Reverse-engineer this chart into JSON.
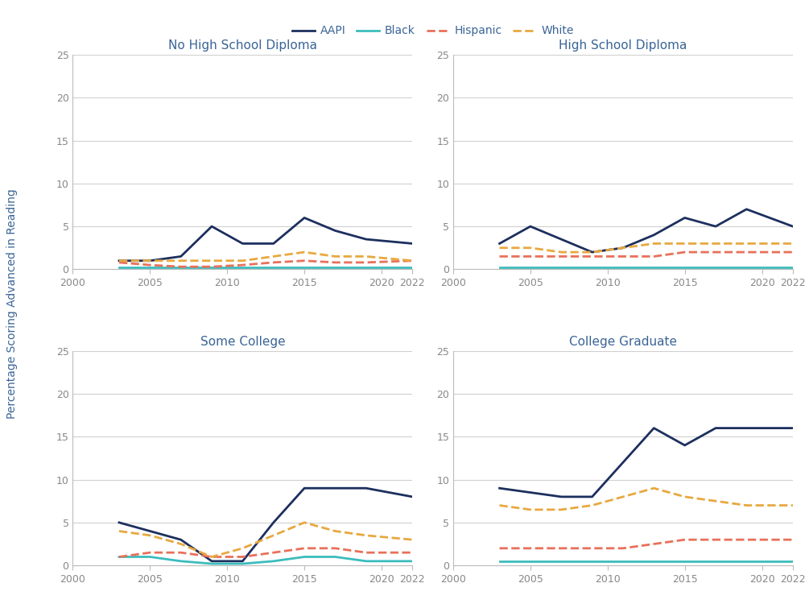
{
  "years": [
    2003,
    2005,
    2007,
    2009,
    2011,
    2013,
    2015,
    2017,
    2019,
    2022
  ],
  "panels": [
    {
      "title": "No High School Diploma",
      "AAPI": [
        1.0,
        1.0,
        1.5,
        5.0,
        3.0,
        3.0,
        6.0,
        4.5,
        3.5,
        3.0
      ],
      "Black": [
        0.2,
        0.2,
        0.2,
        0.2,
        0.2,
        0.2,
        0.2,
        0.2,
        0.2,
        0.2
      ],
      "Hispanic": [
        0.8,
        0.5,
        0.3,
        0.3,
        0.5,
        0.8,
        1.0,
        0.8,
        0.8,
        1.0
      ],
      "White": [
        1.0,
        1.0,
        1.0,
        1.0,
        1.0,
        1.5,
        2.0,
        1.5,
        1.5,
        1.0
      ]
    },
    {
      "title": "High School Diploma",
      "AAPI": [
        3.0,
        5.0,
        3.5,
        2.0,
        2.5,
        4.0,
        6.0,
        5.0,
        7.0,
        5.0
      ],
      "Black": [
        0.2,
        0.2,
        0.2,
        0.2,
        0.2,
        0.2,
        0.2,
        0.2,
        0.2,
        0.2
      ],
      "Hispanic": [
        1.5,
        1.5,
        1.5,
        1.5,
        1.5,
        1.5,
        2.0,
        2.0,
        2.0,
        2.0
      ],
      "White": [
        2.5,
        2.5,
        2.0,
        2.0,
        2.5,
        3.0,
        3.0,
        3.0,
        3.0,
        3.0
      ]
    },
    {
      "title": "Some College",
      "AAPI": [
        5.0,
        4.0,
        3.0,
        0.5,
        0.5,
        5.0,
        9.0,
        9.0,
        9.0,
        8.0
      ],
      "Black": [
        1.0,
        1.0,
        0.5,
        0.2,
        0.2,
        0.5,
        1.0,
        1.0,
        0.5,
        0.5
      ],
      "Hispanic": [
        1.0,
        1.5,
        1.5,
        1.0,
        1.0,
        1.5,
        2.0,
        2.0,
        1.5,
        1.5
      ],
      "White": [
        4.0,
        3.5,
        2.5,
        1.0,
        2.0,
        3.5,
        5.0,
        4.0,
        3.5,
        3.0
      ]
    },
    {
      "title": "College Graduate",
      "AAPI": [
        9.0,
        8.5,
        8.0,
        8.0,
        12.0,
        16.0,
        14.0,
        16.0,
        16.0,
        16.0
      ],
      "Black": [
        0.5,
        0.5,
        0.5,
        0.5,
        0.5,
        0.5,
        0.5,
        0.5,
        0.5,
        0.5
      ],
      "Hispanic": [
        2.0,
        2.0,
        2.0,
        2.0,
        2.0,
        2.5,
        3.0,
        3.0,
        3.0,
        3.0
      ],
      "White": [
        7.0,
        6.5,
        6.5,
        7.0,
        8.0,
        9.0,
        8.0,
        7.5,
        7.0,
        7.0
      ]
    }
  ],
  "colors": {
    "AAPI": {
      "color": "#1c2f5e",
      "linestyle": "-",
      "linewidth": 2.0
    },
    "Black": {
      "color": "#3cbcbc",
      "linestyle": "-",
      "linewidth": 2.0
    },
    "Hispanic": {
      "color": "#e8705a",
      "linestyle": "--",
      "linewidth": 2.0
    },
    "White": {
      "color": "#e8a840",
      "linestyle": "--",
      "linewidth": 2.0
    }
  },
  "ylabel": "Percentage Scoring Advanced in Reading",
  "ylim": [
    0,
    25
  ],
  "yticks": [
    0,
    5,
    10,
    15,
    20,
    25
  ],
  "xlim": [
    2000,
    2022
  ],
  "xticks": [
    2000,
    2005,
    2010,
    2015,
    2020,
    2022
  ],
  "xticklabels": [
    "2000",
    "2005",
    "2010",
    "2015",
    "2020",
    "2022"
  ],
  "title_color": "#3a6496",
  "label_color": "#3a6496",
  "axis_color": "#bbbbbb",
  "grid_color": "#d0d0d0",
  "tick_color": "#888888",
  "background_color": "#ffffff",
  "legend_items": [
    "AAPI",
    "Black",
    "Hispanic",
    "White"
  ]
}
